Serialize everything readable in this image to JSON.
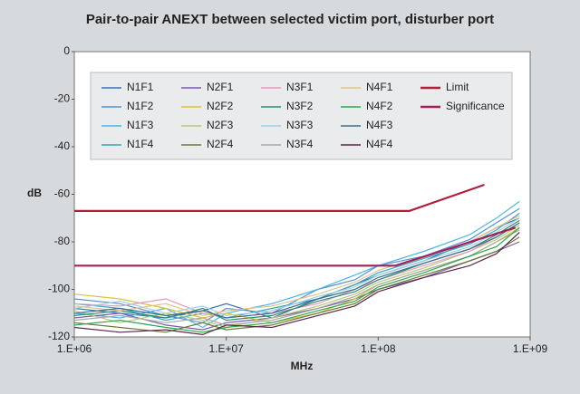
{
  "chart_data": {
    "type": "line",
    "title": "Pair-to-pair ANEXT between selected victim port, disturber port",
    "x_label": "MHz",
    "y_label": "dB",
    "log_x": true,
    "grid": false,
    "xlim": [
      1000000,
      1000000000
    ],
    "ylim": [
      -120,
      0
    ],
    "xticks": [
      {
        "value": 1000000,
        "label": "1.E+06"
      },
      {
        "value": 10000000,
        "label": "1.E+07"
      },
      {
        "value": 100000000,
        "label": "1.E+08"
      },
      {
        "value": 1000000000,
        "label": "1.E+09"
      }
    ],
    "yticks": [
      0,
      -20,
      -40,
      -60,
      -80,
      -100,
      -120
    ],
    "x": [
      1000000,
      2000000,
      4000000,
      7000000,
      10000000,
      20000000,
      40000000,
      70000000,
      100000000,
      200000000,
      400000000,
      600000000,
      850000000
    ],
    "series": [
      {
        "name": "N1F1",
        "color": "#3d6fb0",
        "values": [
          -108,
          -110,
          -112,
          -109,
          -106,
          -112,
          -104,
          -98,
          -94,
          -88,
          -80,
          -74,
          -70
        ]
      },
      {
        "name": "N1F2",
        "color": "#5a8fd0",
        "values": [
          -104,
          -106,
          -111,
          -114,
          -108,
          -110,
          -100,
          -96,
          -90,
          -86,
          -79,
          -72,
          -66
        ]
      },
      {
        "name": "N1F3",
        "color": "#4bb6e6",
        "values": [
          -110,
          -112,
          -108,
          -116,
          -110,
          -106,
          -100,
          -94,
          -90,
          -84,
          -77,
          -70,
          -63
        ]
      },
      {
        "name": "N1F4",
        "color": "#36a6b8",
        "values": [
          -106,
          -108,
          -113,
          -110,
          -112,
          -108,
          -104,
          -98,
          -93,
          -87,
          -81,
          -75,
          -68
        ]
      },
      {
        "name": "N2F1",
        "color": "#7a5aa8",
        "values": [
          -112,
          -110,
          -115,
          -117,
          -114,
          -112,
          -108,
          -104,
          -100,
          -95,
          -88,
          -84,
          -80
        ]
      },
      {
        "name": "N2F2",
        "color": "#d9c23a",
        "values": [
          -102,
          -104,
          -108,
          -112,
          -110,
          -114,
          -110,
          -104,
          -98,
          -92,
          -86,
          -80,
          -74
        ]
      },
      {
        "name": "N2F3",
        "color": "#b8c77a",
        "values": [
          -109,
          -114,
          -110,
          -113,
          -116,
          -112,
          -107,
          -102,
          -97,
          -91,
          -84,
          -79,
          -73
        ]
      },
      {
        "name": "N2F4",
        "color": "#6b7a3a",
        "values": [
          -114,
          -116,
          -118,
          -114,
          -117,
          -115,
          -110,
          -106,
          -100,
          -94,
          -88,
          -84,
          -78
        ]
      },
      {
        "name": "N3F1",
        "color": "#e39ac0",
        "values": [
          -106,
          -107,
          -104,
          -110,
          -112,
          -110,
          -106,
          -100,
          -96,
          -90,
          -84,
          -78,
          -72
        ]
      },
      {
        "name": "N3F2",
        "color": "#2e8b6e",
        "values": [
          -111,
          -109,
          -112,
          -108,
          -113,
          -111,
          -105,
          -101,
          -96,
          -89,
          -83,
          -77,
          -71
        ]
      },
      {
        "name": "N3F3",
        "color": "#9fd0e8",
        "values": [
          -108,
          -105,
          -110,
          -107,
          -111,
          -109,
          -103,
          -99,
          -94,
          -88,
          -82,
          -76,
          -70
        ]
      },
      {
        "name": "N3F4",
        "color": "#a8a8a8",
        "values": [
          -113,
          -111,
          -114,
          -112,
          -115,
          -113,
          -108,
          -103,
          -98,
          -92,
          -86,
          -80,
          -75
        ]
      },
      {
        "name": "N4F1",
        "color": "#e0c48a",
        "values": [
          -107,
          -109,
          -106,
          -111,
          -109,
          -107,
          -102,
          -97,
          -92,
          -86,
          -80,
          -74,
          -69
        ]
      },
      {
        "name": "N4F2",
        "color": "#2aa84a",
        "values": [
          -115,
          -113,
          -116,
          -118,
          -116,
          -114,
          -109,
          -105,
          -99,
          -93,
          -86,
          -82,
          -74
        ]
      },
      {
        "name": "N4F3",
        "color": "#3b6e8c",
        "values": [
          -110,
          -108,
          -111,
          -109,
          -112,
          -110,
          -104,
          -100,
          -95,
          -89,
          -83,
          -78,
          -72
        ]
      },
      {
        "name": "N4F4",
        "color": "#5a2a4a",
        "values": [
          -116,
          -118,
          -117,
          -119,
          -115,
          -116,
          -111,
          -107,
          -101,
          -95,
          -90,
          -85,
          -76
        ]
      },
      {
        "name": "Limit",
        "color": "#b0203a",
        "x": [
          1000000,
          160000000,
          500000000
        ],
        "values": [
          -67,
          -67,
          -56
        ]
      },
      {
        "name": "Significance",
        "color": "#a0205a",
        "x": [
          1000000,
          130000000,
          800000000
        ],
        "values": [
          -90,
          -90,
          -74
        ]
      }
    ]
  }
}
